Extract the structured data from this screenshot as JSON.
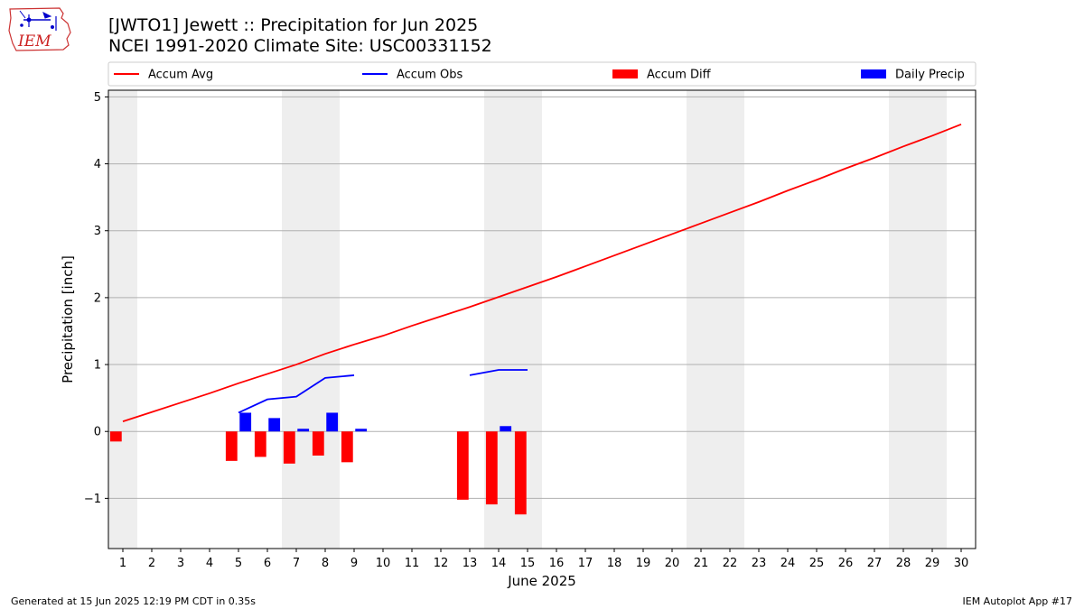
{
  "header": {
    "title_line1": "[JWTO1] Jewett :: Precipitation for Jun 2025",
    "title_line2": "NCEI 1991-2020 Climate Site: USC00331152"
  },
  "logo": {
    "text": "IEM"
  },
  "footer": {
    "generated": "Generated at 15 Jun 2025 12:19 PM CDT in 0.35s",
    "app": "IEM Autoplot App #17"
  },
  "colors": {
    "avg": "#ff0000",
    "obs": "#0000ff",
    "diff": "#ff0000",
    "daily": "#0000ff",
    "weekend_band": "#eeeeee",
    "grid": "#b0b0b0"
  },
  "chart_data": {
    "type": "bar",
    "xlabel": "June 2025",
    "ylabel": "Precipitation [inch]",
    "xlim": [
      0.5,
      30.5
    ],
    "ylim": [
      -1.75,
      5.1
    ],
    "yticks": [
      -1,
      0,
      1,
      2,
      3,
      4,
      5
    ],
    "ytick_labels": [
      "−1",
      "0",
      "1",
      "2",
      "3",
      "4",
      "5"
    ],
    "x": [
      1,
      2,
      3,
      4,
      5,
      6,
      7,
      8,
      9,
      10,
      11,
      12,
      13,
      14,
      15,
      16,
      17,
      18,
      19,
      20,
      21,
      22,
      23,
      24,
      25,
      26,
      27,
      28,
      29,
      30
    ],
    "legend_position": "top",
    "weekend_days": [
      1,
      7,
      8,
      14,
      15,
      21,
      22,
      28,
      29
    ],
    "grid": "horizontal",
    "series": [
      {
        "name": "Accum Avg",
        "kind": "line",
        "x": [
          1,
          2,
          3,
          4,
          5,
          6,
          7,
          8,
          9,
          10,
          11,
          12,
          13,
          14,
          15,
          16,
          17,
          18,
          19,
          20,
          21,
          22,
          23,
          24,
          25,
          26,
          27,
          28,
          29,
          30
        ],
        "values": [
          0.15,
          0.29,
          0.43,
          0.57,
          0.72,
          0.86,
          1.0,
          1.16,
          1.3,
          1.43,
          1.58,
          1.72,
          1.86,
          2.01,
          2.16,
          2.31,
          2.47,
          2.63,
          2.79,
          2.95,
          3.11,
          3.27,
          3.43,
          3.6,
          3.76,
          3.93,
          4.09,
          4.26,
          4.42,
          4.59
        ]
      },
      {
        "name": "Accum Obs",
        "kind": "line",
        "segments": [
          {
            "x": [
              5,
              6,
              7,
              8,
              9
            ],
            "values": [
              0.28,
              0.48,
              0.52,
              0.8,
              0.84
            ]
          },
          {
            "x": [
              13,
              14,
              15
            ],
            "values": [
              0.84,
              0.92,
              0.92
            ]
          }
        ]
      },
      {
        "name": "Accum Diff",
        "kind": "bar",
        "x": [
          1,
          5,
          6,
          7,
          8,
          9,
          13,
          14,
          15
        ],
        "values": [
          -0.15,
          -0.44,
          -0.38,
          -0.48,
          -0.36,
          -0.46,
          -1.02,
          -1.09,
          -1.24
        ]
      },
      {
        "name": "Daily Precip",
        "kind": "bar",
        "x": [
          5,
          6,
          7,
          8,
          9,
          14
        ],
        "values": [
          0.28,
          0.2,
          0.04,
          0.28,
          0.04,
          0.08
        ]
      }
    ]
  }
}
